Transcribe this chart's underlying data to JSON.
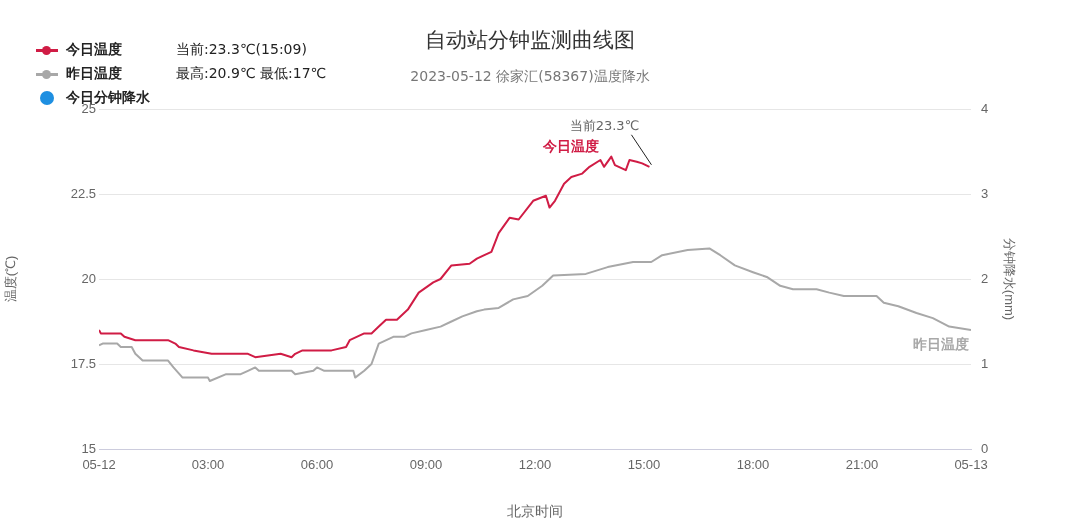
{
  "chart_data": {
    "type": "line",
    "title": "自动站分钟监测曲线图",
    "subtitle": "2023-05-12 徐家汇(58367)温度降水",
    "xlabel": "北京时间",
    "ylabel": "温度(℃)",
    "y2label": "分钟降水(mm)",
    "xlim": [
      0,
      24
    ],
    "xticks": [
      {
        "value": 0,
        "label": "05-12"
      },
      {
        "value": 3,
        "label": "03:00"
      },
      {
        "value": 6,
        "label": "06:00"
      },
      {
        "value": 9,
        "label": "09:00"
      },
      {
        "value": 12,
        "label": "12:00"
      },
      {
        "value": 15,
        "label": "15:00"
      },
      {
        "value": 18,
        "label": "18:00"
      },
      {
        "value": 21,
        "label": "21:00"
      },
      {
        "value": 24,
        "label": "05-13"
      }
    ],
    "ylim": [
      15,
      25
    ],
    "yticks": [
      15,
      17.5,
      20,
      22.5,
      25
    ],
    "y2lim": [
      0,
      4
    ],
    "y2ticks": [
      0,
      1,
      2,
      3,
      4
    ],
    "grid": "y",
    "legend": "top left",
    "line_style": "solid",
    "series": [
      {
        "name": "今日温度",
        "color": "#d01c45",
        "x": [
          0,
          0.05,
          0.6,
          0.7,
          1.0,
          1.9,
          2.1,
          2.2,
          2.6,
          3.1,
          4.1,
          4.3,
          5.0,
          5.3,
          5.4,
          5.6,
          6.4,
          6.8,
          6.9,
          7.3,
          7.5,
          7.7,
          7.9,
          8.2,
          8.5,
          8.8,
          9.2,
          9.4,
          9.7,
          10.2,
          10.4,
          10.8,
          11.0,
          11.3,
          11.55,
          11.95,
          12.3,
          12.4,
          12.55,
          12.8,
          13.0,
          13.3,
          13.5,
          13.8,
          13.9,
          14.1,
          14.2,
          14.5,
          14.6,
          14.8,
          14.95,
          15.15
        ],
        "values": [
          18.5,
          18.4,
          18.4,
          18.3,
          18.2,
          18.2,
          18.1,
          18.0,
          17.9,
          17.8,
          17.8,
          17.7,
          17.8,
          17.7,
          17.8,
          17.9,
          17.9,
          18.0,
          18.2,
          18.4,
          18.4,
          18.6,
          18.8,
          18.8,
          19.1,
          19.6,
          19.9,
          20.0,
          20.4,
          20.45,
          20.6,
          20.8,
          21.35,
          21.8,
          21.75,
          22.3,
          22.45,
          22.1,
          22.3,
          22.8,
          23.0,
          23.1,
          23.3,
          23.5,
          23.3,
          23.6,
          23.35,
          23.2,
          23.5,
          23.45,
          23.4,
          23.3
        ]
      },
      {
        "name": "昨日温度",
        "color": "#a8a8a8",
        "x": [
          0,
          0.1,
          0.5,
          0.6,
          0.9,
          1.0,
          1.2,
          1.9,
          2.05,
          2.3,
          3.0,
          3.05,
          3.5,
          3.9,
          4.1,
          4.3,
          4.4,
          5.3,
          5.4,
          5.9,
          6.0,
          6.2,
          7.0,
          7.05,
          7.3,
          7.5,
          7.7,
          8.1,
          8.4,
          8.6,
          9.0,
          9.4,
          9.7,
          10.0,
          10.4,
          10.6,
          11.0,
          11.4,
          11.8,
          12.2,
          12.5,
          13.4,
          14.0,
          14.7,
          15.2,
          15.5,
          16.2,
          16.8,
          17.1,
          17.5,
          18.0,
          18.4,
          18.75,
          19.1,
          19.75,
          20.1,
          20.5,
          21.4,
          21.6,
          22.0,
          22.5,
          22.95,
          23.4,
          24
        ],
        "values": [
          18.05,
          18.1,
          18.1,
          18.0,
          18.0,
          17.8,
          17.6,
          17.6,
          17.4,
          17.1,
          17.1,
          17.0,
          17.2,
          17.2,
          17.3,
          17.4,
          17.3,
          17.3,
          17.2,
          17.3,
          17.4,
          17.3,
          17.3,
          17.1,
          17.3,
          17.5,
          18.1,
          18.3,
          18.3,
          18.4,
          18.5,
          18.6,
          18.75,
          18.9,
          19.05,
          19.1,
          19.15,
          19.4,
          19.5,
          19.8,
          20.1,
          20.15,
          20.35,
          20.5,
          20.5,
          20.7,
          20.85,
          20.9,
          20.7,
          20.4,
          20.2,
          20.05,
          19.8,
          19.7,
          19.7,
          19.6,
          19.5,
          19.5,
          19.3,
          19.2,
          19.0,
          18.85,
          18.6,
          18.5
        ]
      },
      {
        "name": "今日分钟降水",
        "color": "#1e8fe1",
        "type": "bar"
      }
    ],
    "annotations": [
      "当前:23.3℃(15:09)",
      "最高:20.9℃ 最低:17℃",
      {
        "text": "当前23.3℃",
        "x": 15.15,
        "y": 23.3
      }
    ]
  }
}
